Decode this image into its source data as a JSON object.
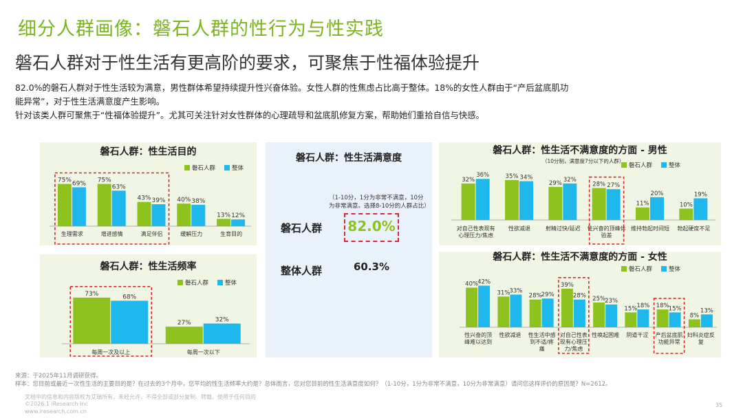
{
  "header": {
    "title": "细分人群画像：磐石人群的性行为与性实践",
    "subtitle": "磐石人群对于性生活有更高阶的要求，可聚焦于性福体验提升",
    "summary_line1": "82.0%的磐石人群对于性生活较为满意，男性群体希望持续提升性兴奋体验。女性人群的性焦虑占比高于整体。18%的女性人群由于“产后盆底肌功",
    "summary_line2": "能异常”，对于性生活满意度产生影响。",
    "summary_line3": "针对该类人群可聚焦于“性福体验提升”。尤其可关注针对女性群体的心理疏导和盆底肌修复方案，帮助她们重拾自信与快感。"
  },
  "colors": {
    "green": "#8dc21f",
    "blue": "#1fb8ec",
    "title_green": "#7ab51d",
    "red": "#d9242b"
  },
  "satisfaction": {
    "title": "磐石人群：性生活满意度",
    "note_line1": "（1-10分，1分为非常不满意，10分",
    "note_line2": "为非常满意。选择8-10分的人群占比）",
    "rows": [
      {
        "label": "磐石人群",
        "value": "82.0%"
      },
      {
        "label": "整体人群",
        "value": "60.3%"
      }
    ]
  },
  "chart_data": [
    {
      "id": "purpose",
      "type": "bar",
      "title": "磐石人群：性生活目的",
      "categories": [
        "生理需求",
        "增进感情",
        "满足伴侣",
        "缓解压力",
        "生育目的"
      ],
      "series": [
        {
          "name": "磐石人群",
          "values": [
            75,
            75,
            43,
            40,
            13
          ]
        },
        {
          "name": "整体",
          "values": [
            69,
            63,
            39,
            38,
            12
          ]
        }
      ],
      "ylim": [
        0,
        100
      ],
      "legend": "top-right"
    },
    {
      "id": "frequency",
      "type": "bar",
      "title": "磐石人群：性生活频率",
      "categories": [
        "每周一次及以上",
        "每周一次以下"
      ],
      "series": [
        {
          "name": "磐石人群",
          "values": [
            73,
            27
          ]
        },
        {
          "name": "整体",
          "values": [
            68,
            32
          ]
        }
      ],
      "ylim": [
        0,
        100
      ],
      "legend": "top-right"
    },
    {
      "id": "male",
      "type": "bar",
      "title": "磐石人群：性生活不满意度的方面 - 男性",
      "note": "（10分制，满意度7分以下的人群）",
      "categories": [
        "对自己性表现有心理压力/焦虑",
        "性欲减退",
        "射精过快/延迟",
        "性兴奋的顶峰体验差",
        "维持勃起时间短",
        "勃起硬度不足"
      ],
      "series": [
        {
          "name": "磐石人群",
          "values": [
            32,
            35,
            29,
            28,
            11,
            10
          ]
        },
        {
          "name": "整体",
          "values": [
            36,
            34,
            32,
            27,
            20,
            19
          ]
        }
      ],
      "ylim": [
        0,
        50
      ],
      "legend": "top-right"
    },
    {
      "id": "female",
      "type": "bar",
      "title": "磐石人群：性生活不满意度的方面 - 女性",
      "categories": [
        "性兴奋的顶峰难以达到",
        "性欲减退",
        "性生活中感到不适/疼痛",
        "对自己性表现有心理压力/焦虑",
        "性唤起困难",
        "阴道干涩",
        "产后盆底肌功能异常",
        "妇科炎症反复"
      ],
      "series": [
        {
          "name": "磐石人群",
          "values": [
            40,
            31,
            28,
            39,
            25,
            15,
            18,
            8
          ]
        },
        {
          "name": "整体",
          "values": [
            42,
            33,
            29,
            28,
            23,
            18,
            15,
            13
          ]
        }
      ],
      "ylim": [
        0,
        50
      ],
      "legend": "top-right"
    }
  ],
  "footer": {
    "source": "来源：于2025年11月调研获得。",
    "sample": "样本：您目前或最近一次性生活的主要目的是？在过去的3个月中，您平均的性生活频率大约是？总体而言，您对您目前的性生活满意度如何？（1-10分，1分为非常不满意，10分为非常满意）请问您这样评价的原因是？N=2612。",
    "copyright1": "文档中的信息和内容版权为艾瑞所有，未经允许，不得全部或部分复制、转载、使用于任何目的",
    "copyright2": "©2026.1 iResearch Inc",
    "copyright3": "www.iresearch.com.cn",
    "page": "35"
  }
}
